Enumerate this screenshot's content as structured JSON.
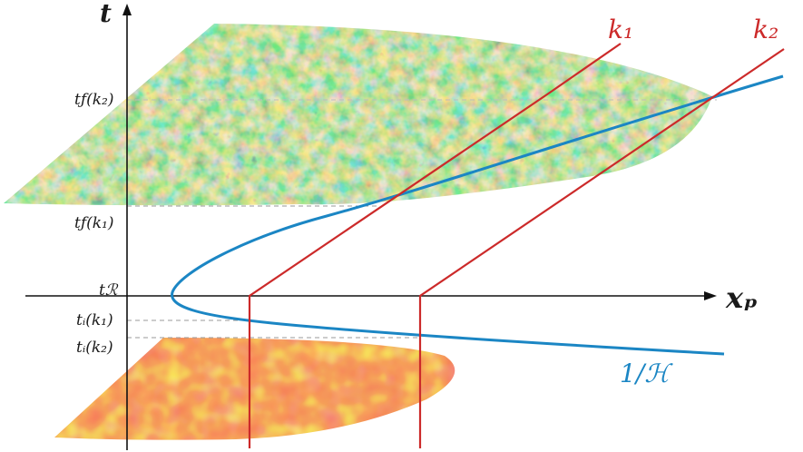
{
  "axes": {
    "vertical_label": "t",
    "horizontal_label": "xₚ"
  },
  "time_ticks": [
    {
      "id": "tf-k2",
      "label": "tƒ(k₂)"
    },
    {
      "id": "tf-k1",
      "label": "tƒ(k₁)"
    },
    {
      "id": "tR",
      "label": "tℛ"
    },
    {
      "id": "ti-k1",
      "label": "tᵢ(k₁)"
    },
    {
      "id": "ti-k2",
      "label": "tᵢ(k₂)"
    }
  ],
  "mode_labels": {
    "k1": "k₁",
    "k2": "k₂"
  },
  "horizon_label": "1/ℋ",
  "colors": {
    "axis": "#111111",
    "mode_lines": "#cc2a2a",
    "hubble_radius": "#1b86c4",
    "dashed_guides": "#aaaaaa",
    "late_map": [
      "#1f4fa8",
      "#2f9a9f",
      "#8fc05a",
      "#e8d13a",
      "#d8552a"
    ],
    "early_map": [
      "#e42a1c",
      "#f2a21e",
      "#f7e23a"
    ]
  }
}
